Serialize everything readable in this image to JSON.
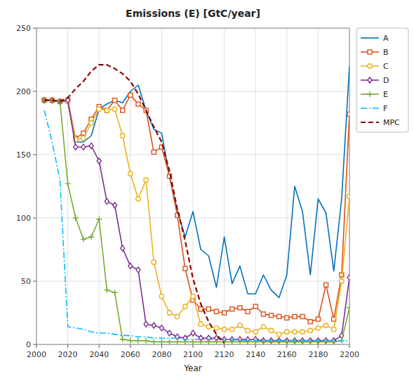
{
  "chart_data": {
    "type": "line",
    "title": "Emissions (E) [GtC/year]",
    "x_label": "Year",
    "xlim": [
      2000,
      2200
    ],
    "ylim": [
      0,
      250
    ],
    "xticks": [
      2000,
      2020,
      2040,
      2060,
      2080,
      2100,
      2120,
      2140,
      2160,
      2180,
      2200
    ],
    "yticks": [
      0,
      50,
      100,
      150,
      200,
      250
    ],
    "grid": true,
    "legend": "right",
    "series": [
      {
        "name": "A",
        "color": "#0072BD",
        "line_style": "solid",
        "x": [
          2005,
          2010,
          2015,
          2020,
          2025,
          2030,
          2035,
          2040,
          2045,
          2050,
          2055,
          2060,
          2065,
          2070,
          2075,
          2080,
          2085,
          2090,
          2095,
          2100,
          2105,
          2110,
          2115,
          2120,
          2125,
          2130,
          2135,
          2140,
          2145,
          2150,
          2155,
          2160,
          2165,
          2170,
          2175,
          2180,
          2185,
          2190,
          2195,
          2200
        ],
        "values": [
          193,
          193,
          192,
          192,
          160,
          160,
          165,
          186,
          190,
          193,
          191,
          200,
          205,
          185,
          170,
          167,
          132,
          106,
          85,
          105,
          75,
          70,
          45,
          85,
          48,
          62,
          40,
          40,
          55,
          43,
          37,
          55,
          125,
          105,
          55,
          115,
          104,
          58,
          115,
          220
        ]
      },
      {
        "name": "B",
        "color": "#D95319",
        "line_style": "solid",
        "marker": "square",
        "x": [
          2005,
          2010,
          2015,
          2020,
          2025,
          2030,
          2035,
          2040,
          2045,
          2050,
          2055,
          2060,
          2065,
          2070,
          2075,
          2080,
          2085,
          2090,
          2095,
          2100,
          2105,
          2110,
          2115,
          2120,
          2125,
          2130,
          2135,
          2140,
          2145,
          2150,
          2155,
          2160,
          2165,
          2170,
          2175,
          2180,
          2185,
          2190,
          2195,
          2200
        ],
        "values": [
          193,
          193,
          192,
          193,
          163,
          167,
          178,
          188,
          185,
          193,
          185,
          197,
          190,
          185,
          152,
          156,
          133,
          102,
          60,
          35,
          28,
          28,
          26,
          25,
          28,
          29,
          26,
          30,
          24,
          23,
          22,
          21,
          22,
          22,
          18,
          20,
          47,
          20,
          55,
          182
        ]
      },
      {
        "name": "C",
        "color": "#EDB120",
        "line_style": "solid",
        "marker": "circle",
        "x": [
          2005,
          2010,
          2015,
          2020,
          2025,
          2030,
          2035,
          2040,
          2045,
          2050,
          2055,
          2060,
          2065,
          2070,
          2075,
          2080,
          2085,
          2090,
          2095,
          2100,
          2105,
          2110,
          2115,
          2120,
          2125,
          2130,
          2135,
          2140,
          2145,
          2150,
          2155,
          2160,
          2165,
          2170,
          2175,
          2180,
          2185,
          2190,
          2195,
          2200
        ],
        "values": [
          193,
          193,
          192,
          192,
          162,
          163,
          175,
          186,
          185,
          186,
          165,
          135,
          115,
          130,
          65,
          38,
          25,
          22,
          30,
          38,
          16,
          14,
          13,
          12,
          12,
          15,
          11,
          10,
          14,
          11,
          8,
          10,
          10,
          10,
          11,
          13,
          15,
          12,
          50,
          117
        ]
      },
      {
        "name": "D",
        "color": "#7E2F8E",
        "line_style": "solid",
        "marker": "diamond",
        "x": [
          2005,
          2010,
          2015,
          2020,
          2025,
          2030,
          2035,
          2040,
          2045,
          2050,
          2055,
          2060,
          2065,
          2070,
          2075,
          2080,
          2085,
          2090,
          2095,
          2100,
          2105,
          2110,
          2115,
          2120,
          2125,
          2130,
          2135,
          2140,
          2145,
          2150,
          2155,
          2160,
          2165,
          2170,
          2175,
          2180,
          2185,
          2190,
          2195,
          2200
        ],
        "values": [
          193,
          193,
          192,
          193,
          156,
          156,
          157,
          145,
          113,
          110,
          76,
          62,
          59,
          16,
          15,
          13,
          9,
          6,
          5,
          9,
          5,
          5,
          5,
          4,
          4,
          4,
          4,
          4,
          3,
          3,
          3,
          3,
          3,
          3,
          3,
          3,
          3,
          3,
          7,
          53
        ]
      },
      {
        "name": "E",
        "color": "#77AC30",
        "line_style": "solid",
        "marker": "plus",
        "x": [
          2005,
          2010,
          2015,
          2020,
          2025,
          2030,
          2035,
          2040,
          2045,
          2050,
          2055,
          2060,
          2065,
          2070,
          2075,
          2080,
          2085,
          2090,
          2095,
          2100,
          2105,
          2110,
          2115,
          2120,
          2125,
          2130,
          2135,
          2140,
          2145,
          2150,
          2155,
          2160,
          2165,
          2170,
          2175,
          2180,
          2185,
          2190,
          2195,
          2200
        ],
        "values": [
          193,
          193,
          192,
          127,
          100,
          83,
          85,
          99,
          43,
          41,
          4,
          3,
          3,
          3,
          2,
          2,
          2,
          2,
          2,
          2,
          2,
          2,
          2,
          2,
          2,
          2,
          2,
          2,
          2,
          2,
          2,
          2,
          2,
          2,
          2,
          2,
          2,
          2,
          3,
          29
        ]
      },
      {
        "name": "F",
        "color": "#00BFFF",
        "line_style": "dashdot",
        "x": [
          2005,
          2010,
          2015,
          2020,
          2025,
          2030,
          2035,
          2040,
          2045,
          2050,
          2055,
          2060,
          2065,
          2070,
          2075,
          2080,
          2085,
          2090,
          2095,
          2100,
          2105,
          2110,
          2115,
          2120,
          2125,
          2130,
          2135,
          2140,
          2145,
          2150,
          2155,
          2160,
          2165,
          2170,
          2175,
          2180,
          2185,
          2190,
          2195,
          2200
        ],
        "values": [
          185,
          160,
          130,
          14,
          13,
          12,
          10,
          9,
          9,
          8,
          7,
          7,
          6,
          6,
          5,
          5,
          5,
          5,
          4,
          4,
          4,
          4,
          4,
          4,
          4,
          3,
          3,
          3,
          3,
          3,
          3,
          3,
          3,
          3,
          3,
          3,
          3,
          3,
          3,
          3
        ]
      },
      {
        "name": "MPC",
        "color": "#8B0000",
        "line_style": "dashed",
        "x": [
          2005,
          2010,
          2015,
          2020,
          2025,
          2030,
          2035,
          2040,
          2045,
          2050,
          2055,
          2060,
          2065,
          2070,
          2075,
          2080,
          2085,
          2090,
          2095,
          2100,
          2105,
          2110,
          2115,
          2120
        ],
        "values": [
          193,
          193,
          192,
          195,
          202,
          208,
          216,
          221,
          221,
          218,
          214,
          208,
          198,
          185,
          172,
          160,
          137,
          107,
          82,
          52,
          32,
          18,
          8,
          1
        ]
      }
    ]
  }
}
